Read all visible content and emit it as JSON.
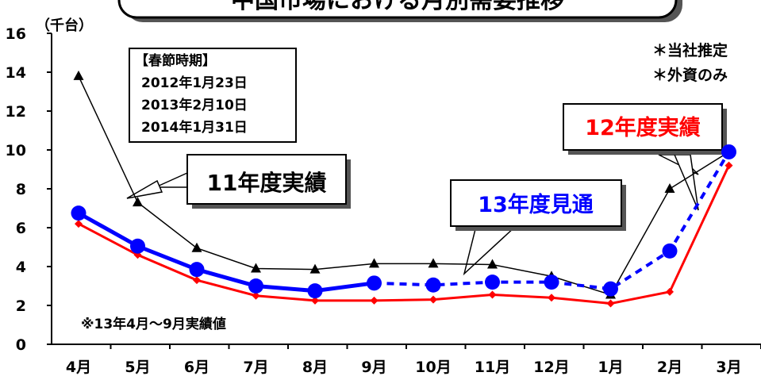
{
  "title_partial": "中国市場における月別需要推移",
  "unit_label": "（千台）",
  "notes": {
    "estimate": "＊当社推定",
    "foreign_only": "＊外資のみ"
  },
  "spring_festival": {
    "heading": "【春節時期】",
    "dates": [
      "2012年1月23日",
      "2013年2月10日",
      "2014年1月31日"
    ]
  },
  "footnote": "※13年4月～9月実績値",
  "callouts": {
    "fy11": "11年度実績",
    "fy13": "13年度見通",
    "fy12": "12年度実績"
  },
  "colors": {
    "fy11": "#000000",
    "fy12": "#ff0000",
    "fy13": "#0000ff"
  },
  "chart_data": {
    "type": "line",
    "categories": [
      "4月",
      "5月",
      "6月",
      "7月",
      "8月",
      "9月",
      "10月",
      "11月",
      "12月",
      "1月",
      "2月",
      "3月"
    ],
    "ylim": [
      0,
      16
    ],
    "yticks": [
      0,
      2,
      4,
      6,
      8,
      10,
      12,
      14,
      16
    ],
    "ylabel": "（千台）",
    "grid": false,
    "series": [
      {
        "name": "11年度実績",
        "marker": "triangle",
        "values": [
          13.8,
          7.3,
          4.95,
          3.9,
          3.85,
          4.15,
          4.15,
          4.1,
          3.5,
          2.55,
          8.0,
          9.9
        ]
      },
      {
        "name": "12年度実績",
        "marker": "diamond",
        "values": [
          6.2,
          4.6,
          3.3,
          2.5,
          2.25,
          2.25,
          2.3,
          2.55,
          2.4,
          2.1,
          2.7,
          9.2
        ]
      },
      {
        "name": "13年度見通",
        "marker": "circle",
        "values": [
          6.75,
          5.05,
          3.85,
          3.0,
          2.75,
          3.15,
          3.05,
          3.2,
          3.2,
          2.85,
          4.8,
          9.9
        ],
        "actual_through_index": 5
      }
    ]
  }
}
